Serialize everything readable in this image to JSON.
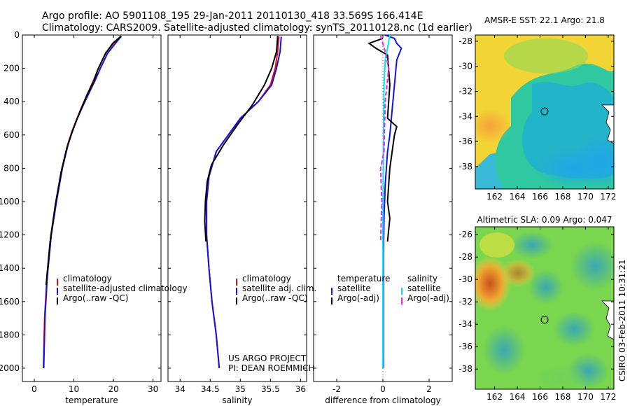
{
  "title_line1": "Argo profile: AO 5901108_195 29-Jan-2011 20110130_418 33.569S 166.414E",
  "title_line2": "Climatology: CARS2009. Satellite-adjusted climatology: synTS_20110128.nc (1d earlier)",
  "side_stamp": "CSIRO 03-Feb-2011 10:31:21",
  "project_line1": "US ARGO PROJECT",
  "project_line2": "PI: DEAN ROEMMICH",
  "colors": {
    "climatology": "#dd1111",
    "satellite": "#1111ee",
    "argo": "#000000",
    "sat_salinity": "#00e5ee",
    "argo_adj": "#ee22ee"
  },
  "chart_data": [
    {
      "id": "temperature",
      "type": "line",
      "xlabel": "temperature",
      "xlim": [
        -3,
        32
      ],
      "ylim": [
        0,
        2080
      ],
      "xticks": [
        0,
        10,
        20,
        30
      ],
      "yticks": [
        0,
        200,
        400,
        600,
        800,
        1000,
        1200,
        1400,
        1600,
        1800,
        2000
      ],
      "legend": [
        "climatology",
        "satellite-adjusted climatology",
        "Argo(..raw -QC)"
      ],
      "series": [
        {
          "name": "climatology",
          "color": "#dd1111",
          "x": [
            21.8,
            20,
            18,
            16.2,
            15,
            13.5,
            12,
            10.8,
            9.5,
            8.4,
            7,
            5.5,
            4.2,
            3.2,
            2.6,
            2.3
          ],
          "y": [
            10,
            50,
            110,
            200,
            270,
            350,
            430,
            500,
            580,
            660,
            800,
            1000,
            1200,
            1450,
            1700,
            2000
          ]
        },
        {
          "name": "satellite-adjusted climatology",
          "color": "#1111ee",
          "x": [
            21.9,
            20.5,
            18.5,
            16.7,
            15.4,
            13.8,
            12.2,
            10.9,
            9.6,
            8.5,
            7.1,
            5.6,
            4.3,
            3.3,
            2.7,
            2.4
          ],
          "y": [
            10,
            50,
            110,
            200,
            270,
            350,
            430,
            500,
            580,
            660,
            800,
            1000,
            1200,
            1450,
            1700,
            2000
          ]
        },
        {
          "name": "Argo(..raw -QC)",
          "color": "#000000",
          "x": [
            22,
            19.8,
            19.2,
            18,
            16,
            15,
            13.3,
            11.9,
            10.5,
            9.3,
            8.2,
            6.8,
            5.3,
            4,
            3
          ],
          "y": [
            5,
            50,
            70,
            110,
            210,
            280,
            360,
            440,
            520,
            600,
            680,
            820,
            1020,
            1240,
            1500
          ]
        }
      ]
    },
    {
      "id": "salinity",
      "type": "line",
      "xlabel": "salinity",
      "xlim": [
        33.8,
        36.1
      ],
      "ylim": [
        0,
        2080
      ],
      "xticks": [
        34,
        34.5,
        35,
        35.5,
        36
      ],
      "legend": [
        "climatology",
        "satellite adj. clim.",
        "Argo(..raw -QC)"
      ],
      "series": [
        {
          "name": "climatology",
          "color": "#dd1111",
          "x": [
            35.64,
            35.62,
            35.58,
            35.5,
            35.3,
            35,
            34.8,
            34.6,
            34.48,
            34.44,
            34.44,
            34.48,
            34.53,
            34.6,
            34.65
          ],
          "y": [
            10,
            100,
            200,
            300,
            400,
            500,
            600,
            700,
            850,
            1000,
            1200,
            1400,
            1600,
            1800,
            2000
          ]
        },
        {
          "name": "satellite adj. clim.",
          "color": "#1111ee",
          "x": [
            35.68,
            35.66,
            35.6,
            35.52,
            35.3,
            35,
            34.8,
            34.6,
            34.48,
            34.44,
            34.44,
            34.48,
            34.53,
            34.6,
            34.65
          ],
          "y": [
            10,
            100,
            200,
            300,
            400,
            500,
            600,
            700,
            850,
            1000,
            1200,
            1400,
            1600,
            1800,
            2000
          ]
        },
        {
          "name": "Argo(..raw -QC)",
          "color": "#000000",
          "x": [
            35.62,
            35.6,
            35.52,
            35.4,
            35.2,
            34.95,
            34.72,
            34.52,
            34.45,
            34.42,
            34.41,
            34.43
          ],
          "y": [
            5,
            100,
            200,
            300,
            420,
            540,
            660,
            780,
            880,
            1000,
            1120,
            1240
          ]
        }
      ]
    },
    {
      "id": "difference",
      "type": "line",
      "xlabel": "difference from climatology",
      "xlim": [
        -3,
        3
      ],
      "ylim": [
        0,
        2080
      ],
      "xticks": [
        -2,
        0,
        2
      ],
      "legend_left_title": "temperature",
      "legend_left": [
        "satellite",
        "Argo(-adj)"
      ],
      "legend_right_title": "salinity",
      "legend_right": [
        "satellite",
        "Argo(-adj)"
      ],
      "series": [
        {
          "name": "temperature satellite",
          "color": "#1111ee",
          "x": [
            0.1,
            0.5,
            0.6,
            0.8,
            0.6,
            0.5,
            0.4,
            0.3,
            0.2,
            0.1,
            0.05,
            0.02,
            0.02,
            0.02
          ],
          "y": [
            0,
            20,
            50,
            80,
            150,
            300,
            450,
            600,
            700,
            900,
            1100,
            1300,
            1600,
            2000
          ]
        },
        {
          "name": "temperature Argo(-adj)",
          "color": "#000000",
          "x": [
            0,
            -0.6,
            -0.3,
            0.2,
            0.3,
            0.2,
            0.6,
            0.5,
            0.3,
            0.2,
            0.3,
            0.2
          ],
          "y": [
            20,
            50,
            80,
            120,
            300,
            500,
            550,
            600,
            800,
            1000,
            1100,
            1240
          ]
        },
        {
          "name": "salinity satellite",
          "color": "#00e5ee",
          "x": [
            0.3,
            0.2,
            0.1,
            0.05,
            0.02,
            0,
            0
          ],
          "y": [
            0,
            80,
            150,
            300,
            600,
            1200,
            2000
          ]
        },
        {
          "name": "salinity Argo(-adj)",
          "color": "#ee22ee",
          "x": [
            -0.1,
            0.1,
            0.25,
            0.1,
            0.05,
            -0.1,
            -0.05,
            -0.1
          ],
          "y": [
            5,
            100,
            200,
            400,
            700,
            800,
            1000,
            1240
          ]
        }
      ]
    },
    {
      "id": "sst_map",
      "type": "heatmap",
      "title": "AMSR-E SST: 22.1 Argo: 21.8",
      "xlim": [
        160.3,
        172.5
      ],
      "ylim": [
        -39.8,
        -27.5
      ],
      "xticks": [
        162,
        164,
        166,
        168,
        170,
        172
      ],
      "yticks": [
        -28,
        -30,
        -32,
        -34,
        -36,
        -38
      ],
      "marker": [
        166.4,
        -33.6
      ]
    },
    {
      "id": "sla_map",
      "type": "heatmap",
      "title": "Altimetric SLA: 0.09 Argo: 0.047",
      "xlim": [
        160.3,
        172.5
      ],
      "ylim": [
        -39.8,
        -25.3
      ],
      "xticks": [
        162,
        164,
        166,
        168,
        170,
        172
      ],
      "yticks": [
        -26,
        -28,
        -30,
        -32,
        -34,
        -36,
        -38
      ],
      "marker": [
        166.4,
        -33.6
      ]
    }
  ]
}
